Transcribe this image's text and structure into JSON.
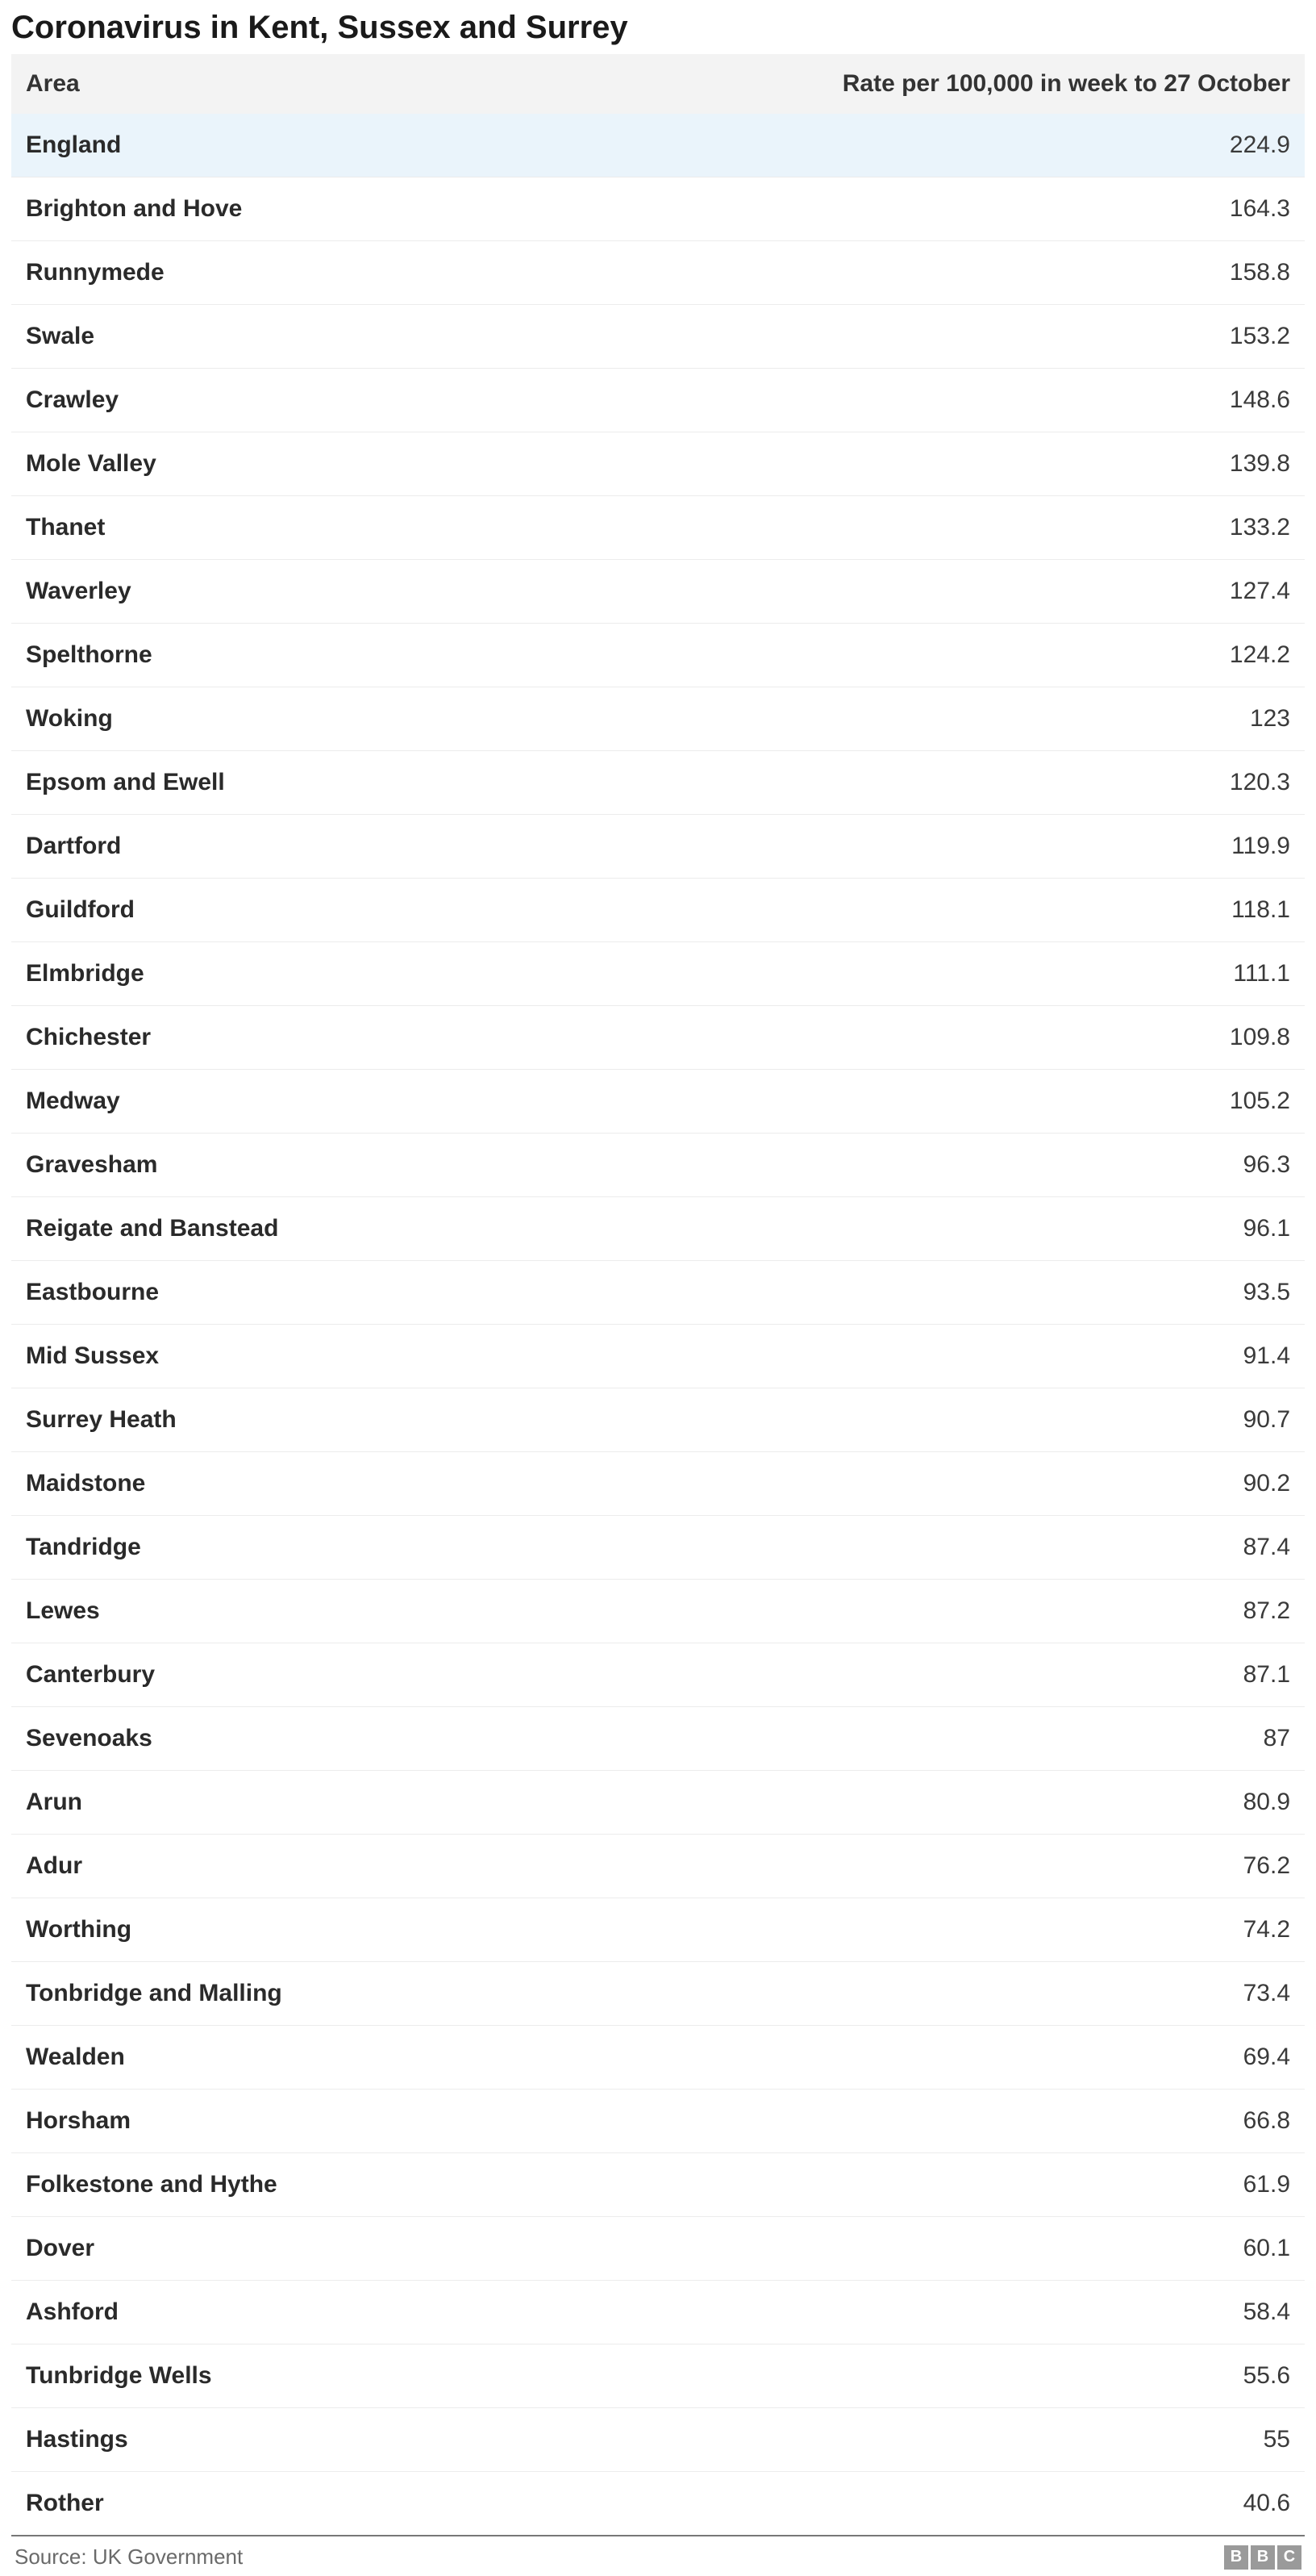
{
  "title": "Coronavirus in Kent, Sussex and Surrey",
  "table": {
    "columns": {
      "area": "Area",
      "rate": "Rate per 100,000 in week to 27 October"
    },
    "column_align": {
      "area": "left",
      "rate": "right"
    },
    "header_bg": "#f3f3f3",
    "header_fontsize": 30,
    "cell_fontsize": 30,
    "row_border_color": "#ececec",
    "bottom_border_color": "#777777",
    "highlight_bg": "#eaf4fb",
    "rows": [
      {
        "area": "England",
        "rate": "224.9",
        "highlight": true
      },
      {
        "area": "Brighton and Hove",
        "rate": "164.3"
      },
      {
        "area": "Runnymede",
        "rate": "158.8"
      },
      {
        "area": "Swale",
        "rate": "153.2"
      },
      {
        "area": "Crawley",
        "rate": "148.6"
      },
      {
        "area": "Mole Valley",
        "rate": "139.8"
      },
      {
        "area": "Thanet",
        "rate": "133.2"
      },
      {
        "area": "Waverley",
        "rate": "127.4"
      },
      {
        "area": "Spelthorne",
        "rate": "124.2"
      },
      {
        "area": "Woking",
        "rate": "123"
      },
      {
        "area": "Epsom and Ewell",
        "rate": "120.3"
      },
      {
        "area": "Dartford",
        "rate": "119.9"
      },
      {
        "area": "Guildford",
        "rate": "118.1"
      },
      {
        "area": "Elmbridge",
        "rate": "111.1"
      },
      {
        "area": "Chichester",
        "rate": "109.8"
      },
      {
        "area": "Medway",
        "rate": "105.2"
      },
      {
        "area": "Gravesham",
        "rate": "96.3"
      },
      {
        "area": "Reigate and Banstead",
        "rate": "96.1"
      },
      {
        "area": "Eastbourne",
        "rate": "93.5"
      },
      {
        "area": "Mid Sussex",
        "rate": "91.4"
      },
      {
        "area": "Surrey Heath",
        "rate": "90.7"
      },
      {
        "area": "Maidstone",
        "rate": "90.2"
      },
      {
        "area": "Tandridge",
        "rate": "87.4"
      },
      {
        "area": "Lewes",
        "rate": "87.2"
      },
      {
        "area": "Canterbury",
        "rate": "87.1"
      },
      {
        "area": "Sevenoaks",
        "rate": "87"
      },
      {
        "area": "Arun",
        "rate": "80.9"
      },
      {
        "area": "Adur",
        "rate": "76.2"
      },
      {
        "area": "Worthing",
        "rate": "74.2"
      },
      {
        "area": "Tonbridge and Malling",
        "rate": "73.4"
      },
      {
        "area": "Wealden",
        "rate": "69.4"
      },
      {
        "area": "Horsham",
        "rate": "66.8"
      },
      {
        "area": "Folkestone and Hythe",
        "rate": "61.9"
      },
      {
        "area": "Dover",
        "rate": "60.1"
      },
      {
        "area": "Ashford",
        "rate": "58.4"
      },
      {
        "area": "Tunbridge Wells",
        "rate": "55.6"
      },
      {
        "area": "Hastings",
        "rate": "55"
      },
      {
        "area": "Rother",
        "rate": "40.6"
      }
    ]
  },
  "footer": {
    "source": "Source: UK Government",
    "logo_letters": [
      "B",
      "B",
      "C"
    ]
  },
  "colors": {
    "background": "#ffffff",
    "text": "#222222",
    "muted": "#6a6a6a"
  }
}
